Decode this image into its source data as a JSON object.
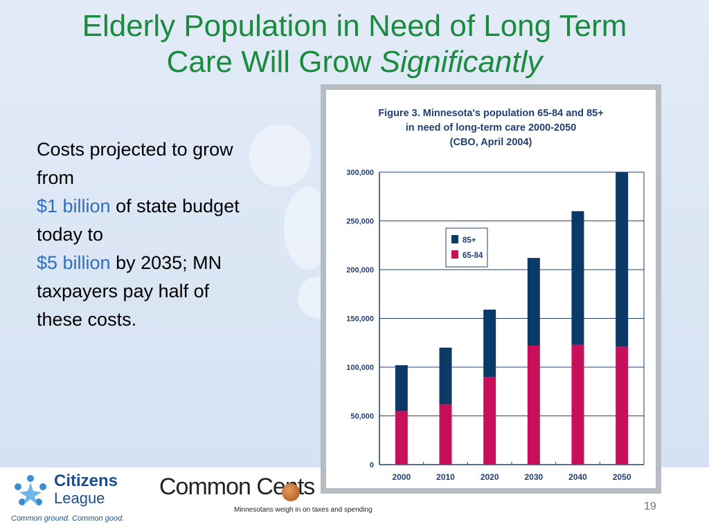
{
  "slide": {
    "title_line1": "Elderly Population in Need of Long Term",
    "title_line2_normal": "Care Will Grow ",
    "title_line2_italic": "Significantly",
    "body": {
      "p1": "Costs projected to grow from",
      "hl1": "$1 billion",
      "p2": " of state budget today to",
      "hl2": "$5 billion",
      "p3": " by 2035; MN taxpayers pay half of these costs."
    },
    "slide_number": "19"
  },
  "logos": {
    "citizens_league_line1": "Citizens",
    "citizens_league_line2": "League",
    "citizens_league_tagline": "Common ground. Common good.",
    "common_cents": "Common Cents",
    "common_cents_tagline": "Minnesotans weigh in on taxes and spending"
  },
  "colors": {
    "title_green": "#1a8a3c",
    "highlight_blue": "#2e6fc0",
    "series_85_plus": "#0b3a66",
    "series_65_84": "#c8105a",
    "figure_title": "#1f3f73"
  },
  "chart_data": {
    "type": "bar",
    "stacked": true,
    "title_lines": [
      "Figure 3. Minnesota's population 65-84 and 85+",
      "in need of long-term care 2000-2050",
      "(CBO, April 2004)"
    ],
    "categories": [
      "2000",
      "2010",
      "2020",
      "2030",
      "2040",
      "2050"
    ],
    "series": [
      {
        "name": "65-84",
        "values": [
          55000,
          62000,
          90000,
          122000,
          123000,
          121000
        ]
      },
      {
        "name": "85+",
        "values": [
          47000,
          58000,
          69000,
          90000,
          137000,
          179000
        ]
      }
    ],
    "legend_order": [
      "85+",
      "65-84"
    ],
    "ylim": [
      0,
      300000
    ],
    "yticks": [
      0,
      50000,
      100000,
      150000,
      200000,
      250000,
      300000
    ],
    "ytick_labels": [
      "0",
      "50,000",
      "100,000",
      "150,000",
      "200,000",
      "250,000",
      "300,000"
    ],
    "grid": true,
    "legend_position": "top-left"
  }
}
